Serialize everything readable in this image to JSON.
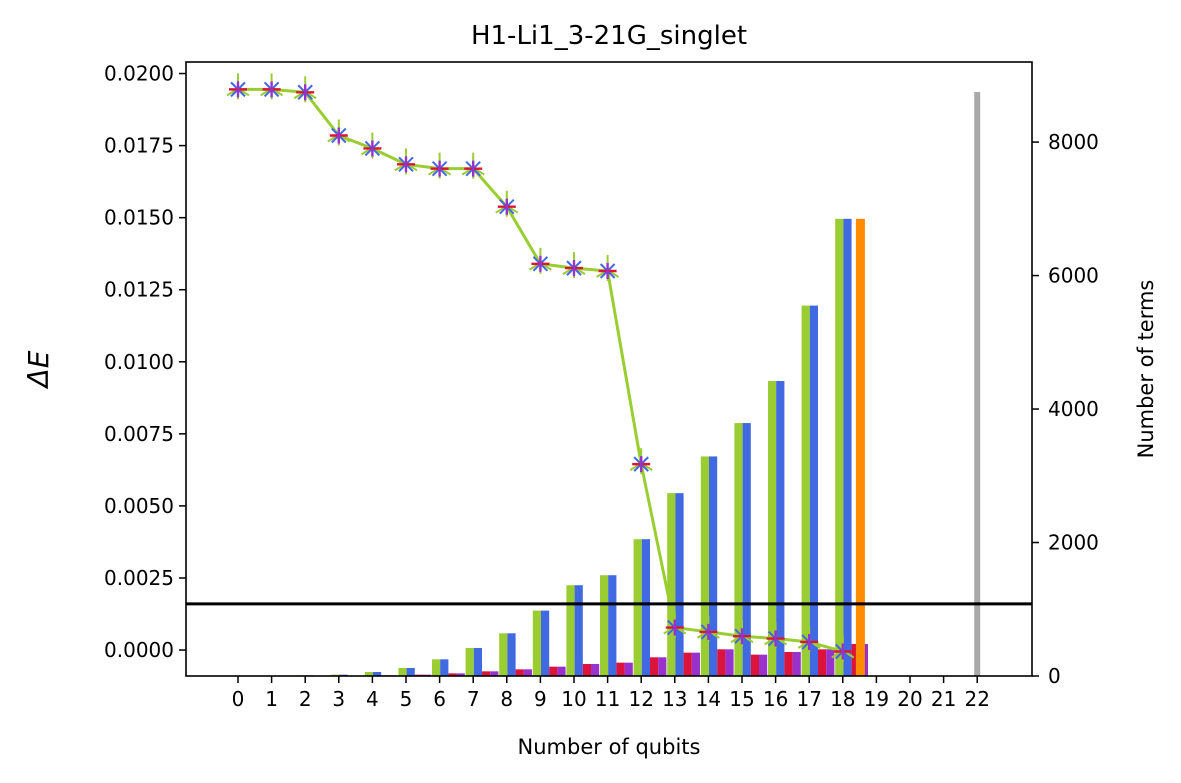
{
  "chart_data": {
    "type": "bar+line",
    "title": "H1-Li1_3-21G_singlet",
    "xlabel": "Number of qubits",
    "ylabel_left": "ΔE",
    "ylabel_right": "Number of terms",
    "x_ticks": [
      "0",
      "1",
      "2",
      "3",
      "4",
      "5",
      "6",
      "7",
      "8",
      "9",
      "10",
      "11",
      "12",
      "13",
      "14",
      "15",
      "16",
      "17",
      "18",
      "19",
      "20",
      "21",
      "22"
    ],
    "left_yticks": [
      "0.0000",
      "0.0025",
      "0.0050",
      "0.0075",
      "0.0100",
      "0.0125",
      "0.0150",
      "0.0175",
      "0.0200"
    ],
    "left_ylim": [
      -0.0009,
      0.0204
    ],
    "right_yticks": [
      "0",
      "2000",
      "4000",
      "6000",
      "8000"
    ],
    "right_ylim": [
      0,
      9200
    ],
    "hline_left_value": 0.0016,
    "colors": {
      "green": "#9acd32",
      "blue": "#4169e1",
      "crimson": "#dc143c",
      "purple": "#9932cc",
      "orange": "#ff8c00",
      "gray": "#a9a9a9",
      "black": "#000000"
    },
    "delta_e_line": {
      "x": [
        0,
        1,
        2,
        3,
        4,
        5,
        6,
        7,
        8,
        9,
        10,
        11,
        12,
        13,
        14,
        15,
        16,
        17,
        18
      ],
      "y": [
        0.01945,
        0.01945,
        0.01935,
        0.01785,
        0.0174,
        0.01685,
        0.0167,
        0.0167,
        0.01538,
        0.0134,
        0.01325,
        0.01315,
        0.00645,
        0.00078,
        0.00063,
        0.00048,
        0.0004,
        0.00028,
        -5e-05
      ]
    },
    "bar_series": [
      {
        "color_key": "green",
        "values": [
          0,
          0,
          10,
          20,
          60,
          120,
          250,
          420,
          640,
          980,
          1360,
          1510,
          2050,
          2740,
          3290,
          3790,
          4420,
          5550,
          6850
        ]
      },
      {
        "color_key": "blue",
        "values": [
          0,
          0,
          10,
          20,
          60,
          120,
          250,
          420,
          640,
          980,
          1360,
          1510,
          2050,
          2740,
          3290,
          3790,
          4420,
          5550,
          6850
        ]
      },
      {
        "color_key": "crimson",
        "values": [
          0,
          0,
          0,
          5,
          10,
          20,
          40,
          70,
          100,
          140,
          180,
          200,
          280,
          350,
          400,
          320,
          360,
          400,
          480
        ]
      },
      {
        "color_key": "purple",
        "values": [
          0,
          0,
          0,
          5,
          10,
          20,
          40,
          70,
          100,
          140,
          180,
          200,
          280,
          350,
          400,
          320,
          360,
          400,
          480
        ]
      }
    ],
    "orange_bar": {
      "x": 19,
      "value": 6850
    },
    "gray_bar": {
      "x": 22,
      "value": 8750
    }
  }
}
